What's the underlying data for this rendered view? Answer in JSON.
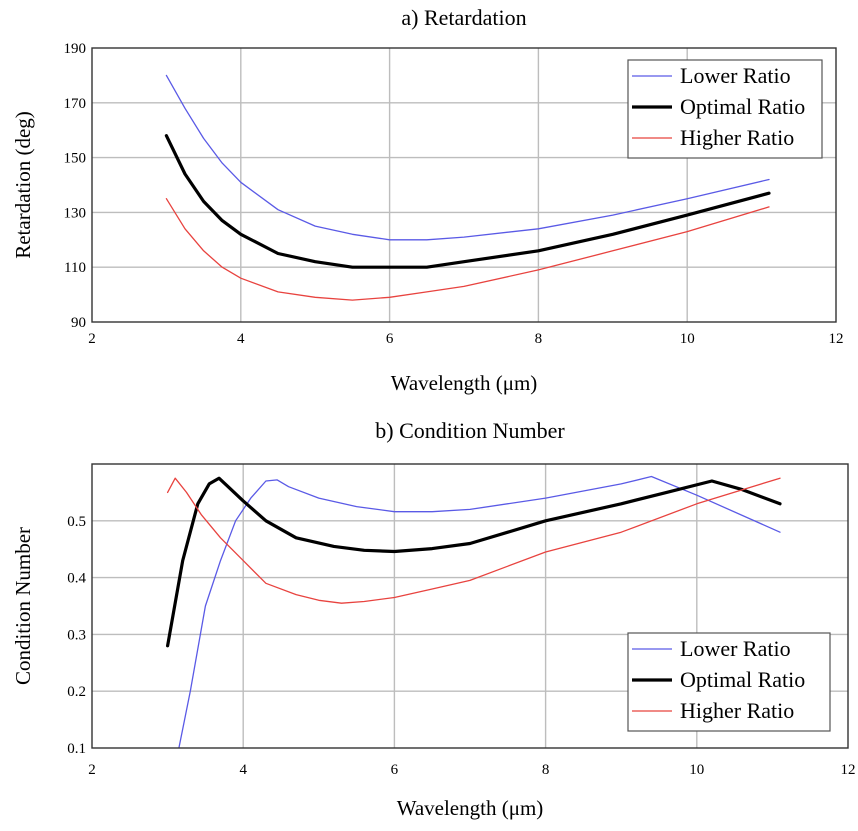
{
  "chart_data": [
    {
      "type": "line",
      "title": "a) Retardation",
      "xlabel": "Wavelength (μm)",
      "ylabel": "Retardation (deg)",
      "xlim": [
        2,
        12
      ],
      "ylim": [
        90,
        190
      ],
      "xticks": [
        2,
        4,
        6,
        8,
        10,
        12
      ],
      "yticks": [
        90,
        110,
        130,
        150,
        170,
        190
      ],
      "grid": true,
      "legend_position": "top-right",
      "series": [
        {
          "name": "Lower Ratio",
          "color": "#5a5ae6",
          "width": 1.3,
          "x": [
            3.0,
            3.25,
            3.5,
            3.75,
            4.0,
            4.5,
            5.0,
            5.5,
            6.0,
            6.5,
            7.0,
            8.0,
            9.0,
            10.0,
            11.1
          ],
          "y": [
            180,
            168,
            157,
            148,
            141,
            131,
            125,
            122,
            120,
            120,
            121,
            124,
            129,
            135,
            142
          ]
        },
        {
          "name": "Optimal Ratio",
          "color": "#000000",
          "width": 3.2,
          "x": [
            3.0,
            3.25,
            3.5,
            3.75,
            4.0,
            4.5,
            5.0,
            5.5,
            6.0,
            6.5,
            7.0,
            8.0,
            9.0,
            10.0,
            11.1
          ],
          "y": [
            158,
            144,
            134,
            127,
            122,
            115,
            112,
            110,
            110,
            110,
            112,
            116,
            122,
            129,
            137
          ]
        },
        {
          "name": "Higher Ratio",
          "color": "#e8433f",
          "width": 1.3,
          "x": [
            3.0,
            3.25,
            3.5,
            3.75,
            4.0,
            4.5,
            5.0,
            5.5,
            6.0,
            6.5,
            7.0,
            8.0,
            9.0,
            10.0,
            11.1
          ],
          "y": [
            135,
            124,
            116,
            110,
            106,
            101,
            99,
            98,
            99,
            101,
            103,
            109,
            116,
            123,
            132
          ]
        }
      ]
    },
    {
      "type": "line",
      "title": "b) Condition Number",
      "xlabel": "Wavelength (μm)",
      "ylabel": "Condition Number",
      "xlim": [
        2,
        12
      ],
      "ylim": [
        0.1,
        0.6
      ],
      "xticks": [
        2,
        4,
        6,
        8,
        10,
        12
      ],
      "yticks": [
        0.1,
        0.2,
        0.3,
        0.4,
        0.5
      ],
      "grid": true,
      "legend_position": "bottom-right",
      "series": [
        {
          "name": "Lower Ratio",
          "color": "#5a5ae6",
          "width": 1.3,
          "x": [
            3.15,
            3.3,
            3.5,
            3.7,
            3.9,
            4.1,
            4.3,
            4.45,
            4.6,
            5.0,
            5.5,
            6.0,
            6.5,
            7.0,
            8.0,
            9.0,
            9.4,
            10.0,
            11.1
          ],
          "y": [
            0.1,
            0.2,
            0.35,
            0.43,
            0.5,
            0.54,
            0.57,
            0.572,
            0.56,
            0.54,
            0.525,
            0.516,
            0.516,
            0.52,
            0.54,
            0.565,
            0.578,
            0.545,
            0.48
          ]
        },
        {
          "name": "Optimal Ratio",
          "color": "#000000",
          "width": 3.2,
          "x": [
            3.0,
            3.2,
            3.4,
            3.55,
            3.68,
            3.8,
            4.0,
            4.3,
            4.7,
            5.2,
            5.6,
            6.0,
            6.5,
            7.0,
            7.5,
            8.0,
            9.0,
            9.6,
            10.2,
            10.6,
            11.1
          ],
          "y": [
            0.28,
            0.43,
            0.53,
            0.565,
            0.575,
            0.56,
            0.535,
            0.5,
            0.47,
            0.455,
            0.448,
            0.446,
            0.451,
            0.46,
            0.48,
            0.5,
            0.53,
            0.55,
            0.57,
            0.555,
            0.53
          ]
        },
        {
          "name": "Higher Ratio",
          "color": "#e8433f",
          "width": 1.3,
          "x": [
            3.0,
            3.1,
            3.25,
            3.45,
            3.7,
            4.0,
            4.3,
            4.7,
            5.0,
            5.3,
            5.6,
            6.0,
            6.5,
            7.0,
            7.5,
            8.0,
            9.0,
            10.0,
            11.1
          ],
          "y": [
            0.55,
            0.575,
            0.55,
            0.51,
            0.47,
            0.43,
            0.39,
            0.37,
            0.36,
            0.355,
            0.358,
            0.365,
            0.38,
            0.395,
            0.42,
            0.445,
            0.48,
            0.53,
            0.575
          ]
        }
      ]
    }
  ]
}
